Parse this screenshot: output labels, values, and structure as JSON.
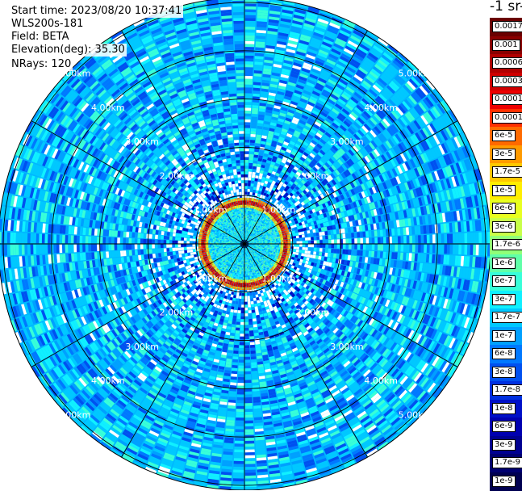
{
  "info": {
    "start_time": "Start time: 2023/08/20 10:37:41",
    "device": "WLS200s-181",
    "field": "Field: BETA",
    "elevation": "Elevation(deg): 35.30",
    "nrays": "NRays: 120"
  },
  "colorbar": {
    "unit": "-1 sr-1",
    "labels": [
      "0.0017",
      "0.001",
      "0.0006",
      "0.0003",
      "0.00017",
      "0.0001",
      "6e-5",
      "3e-5",
      "1.7e-5",
      "1e-5",
      "6e-6",
      "3e-6",
      "1.7e-6",
      "1e-6",
      "6e-7",
      "3e-7",
      "1.7e-7",
      "1e-7",
      "6e-8",
      "3e-8",
      "1.7e-8",
      "1e-8",
      "6e-9",
      "3e-9",
      "1.7e-9",
      "1e-9"
    ],
    "colors": [
      "#6a0000",
      "#8a0000",
      "#b00000",
      "#d00000",
      "#ee0000",
      "#ff3000",
      "#ff6a00",
      "#ff9a00",
      "#ffc800",
      "#ffee00",
      "#e8ff20",
      "#c8ff48",
      "#90ff78",
      "#60ffa8",
      "#38ffd8",
      "#10f0ff",
      "#00c8ff",
      "#00a0ff",
      "#0078ff",
      "#0050f0",
      "#0030e0",
      "#0010c8",
      "#0000b0",
      "#000090",
      "#000070",
      "#000050"
    ]
  },
  "chart_data": {
    "type": "heatmap",
    "projection": "polar (PPI scan)",
    "rays": 120,
    "field": "BETA",
    "range_rings": [
      "1.00km",
      "2.00km",
      "3.00km",
      "4.00km",
      "5.00km"
    ],
    "ring_km": [
      1,
      2,
      3,
      4,
      5
    ],
    "max_range_km": 5.1,
    "colorscale": "log, 1e-9 to 0.0017",
    "features": {
      "core_radius_km": [
        0,
        0.8
      ],
      "bright_ring_radius_km": [
        0.75,
        0.95
      ],
      "noise_region_km": [
        0.95,
        5.1
      ]
    }
  }
}
